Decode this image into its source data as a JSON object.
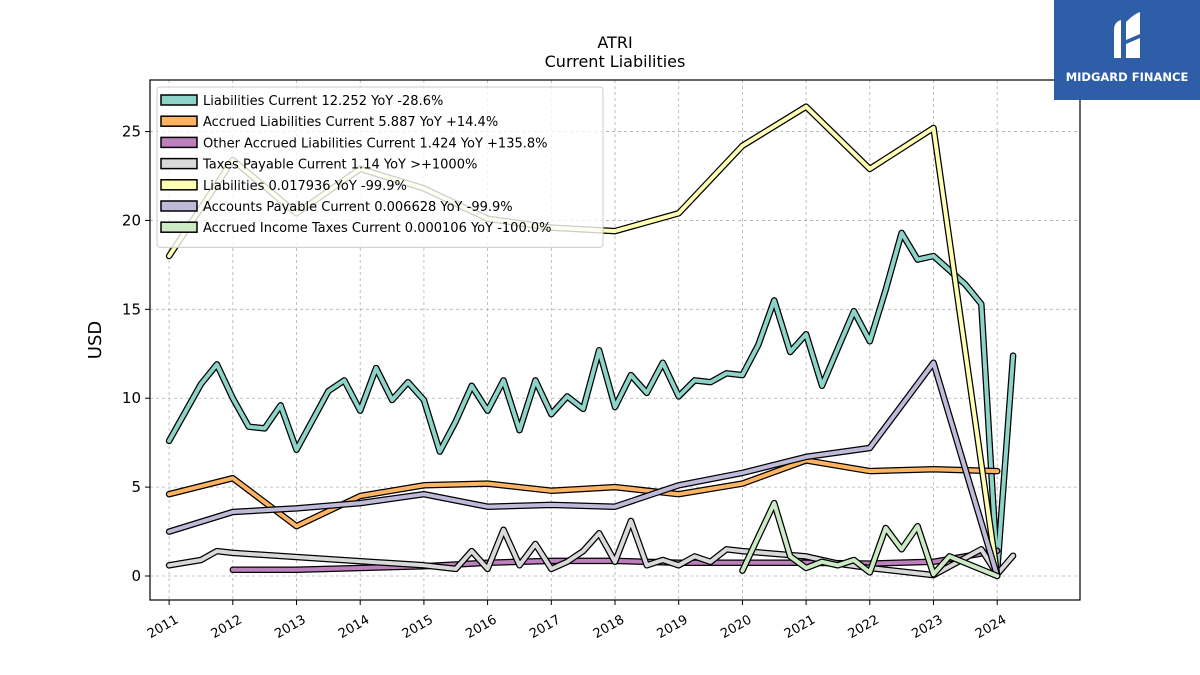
{
  "brand": {
    "name": "MIDGARD FINANCE",
    "color": "#2f5ea8",
    "icon": "midgard-logo-icon"
  },
  "chart_data": {
    "type": "line",
    "title": "ATRI",
    "subtitle": "Current  Liabilities",
    "xlabel": "",
    "ylabel": "USD",
    "xlim": [
      2010.7,
      2025.3
    ],
    "ylim": [
      -1.35,
      27.9
    ],
    "yticks": [
      0,
      5,
      10,
      15,
      20,
      25
    ],
    "xticks": [
      "2011",
      "2012",
      "2013",
      "2014",
      "2015",
      "2016",
      "2017",
      "2018",
      "2019",
      "2020",
      "2021",
      "2022",
      "2023",
      "2024"
    ],
    "grid": true,
    "legend_position": "top-left",
    "series": [
      {
        "name": "Liabilities Current  12.252 YoY -28.6%",
        "color": "#8dd3c7",
        "x": [
          2011.0,
          2011.5,
          2011.75,
          2012.0,
          2012.25,
          2012.5,
          2012.75,
          2013.0,
          2013.5,
          2013.75,
          2014.0,
          2014.25,
          2014.5,
          2014.75,
          2015.0,
          2015.25,
          2015.5,
          2015.75,
          2016.0,
          2016.25,
          2016.5,
          2016.75,
          2017.0,
          2017.25,
          2017.5,
          2017.75,
          2018.0,
          2018.25,
          2018.5,
          2018.75,
          2019.0,
          2019.25,
          2019.5,
          2019.75,
          2020.0,
          2020.25,
          2020.5,
          2020.75,
          2021.0,
          2021.25,
          2021.5,
          2021.75,
          2022.0,
          2022.25,
          2022.5,
          2022.75,
          2023.0,
          2023.5,
          2023.75,
          2024.0,
          2024.25
        ],
        "y": [
          7.6,
          10.8,
          11.9,
          10.0,
          8.4,
          8.3,
          9.6,
          7.1,
          10.4,
          11.0,
          9.3,
          11.7,
          9.9,
          10.9,
          9.9,
          7.0,
          8.7,
          10.7,
          9.3,
          11.0,
          8.2,
          11.0,
          9.1,
          10.1,
          9.4,
          12.7,
          9.5,
          11.3,
          10.3,
          12.0,
          10.1,
          11.0,
          10.9,
          11.4,
          11.3,
          13.0,
          15.5,
          12.6,
          13.6,
          10.7,
          12.8,
          14.9,
          13.2,
          16.1,
          19.3,
          17.8,
          18.0,
          16.4,
          15.3,
          0.3,
          12.4
        ]
      },
      {
        "name": "Accrued Liabilities Current  5.887 YoY +14.4%",
        "color": "#fdb462",
        "x": [
          2011.0,
          2012.0,
          2013.0,
          2014.0,
          2015.0,
          2016.0,
          2017.0,
          2018.0,
          2019.0,
          2020.0,
          2021.0,
          2022.0,
          2023.0,
          2024.0
        ],
        "y": [
          4.6,
          5.5,
          2.8,
          4.5,
          5.1,
          5.2,
          4.8,
          5.0,
          4.6,
          5.2,
          6.5,
          5.9,
          6.0,
          5.9
        ]
      },
      {
        "name": "Other Accrued Liabilities Current  1.424 YoY +135.8%",
        "color": "#bc80bd",
        "x": [
          2012.0,
          2013.0,
          2014.0,
          2015.0,
          2016.0,
          2017.0,
          2018.0,
          2019.0,
          2020.0,
          2021.0,
          2022.0,
          2023.0,
          2024.0
        ],
        "y": [
          0.35,
          0.35,
          0.45,
          0.55,
          0.75,
          0.85,
          0.85,
          0.75,
          0.75,
          0.75,
          0.7,
          0.8,
          1.42
        ]
      },
      {
        "name": "Taxes Payable Current  1.14 YoY >+1000%",
        "color": "#d9d9d9",
        "x": [
          2011.0,
          2011.5,
          2011.75,
          2012.0,
          2015.0,
          2015.5,
          2015.75,
          2016.0,
          2016.25,
          2016.5,
          2016.75,
          2017.0,
          2017.25,
          2017.5,
          2017.75,
          2018.0,
          2018.25,
          2018.5,
          2018.75,
          2019.0,
          2019.25,
          2019.5,
          2019.75,
          2020.0,
          2021.0,
          2021.5,
          2022.0,
          2023.0,
          2023.75,
          2024.0,
          2024.25
        ],
        "y": [
          0.6,
          0.9,
          1.4,
          1.3,
          0.6,
          0.4,
          1.4,
          0.4,
          2.6,
          0.6,
          1.8,
          0.4,
          0.8,
          1.4,
          2.4,
          0.8,
          3.1,
          0.6,
          0.9,
          0.6,
          1.1,
          0.8,
          1.5,
          1.4,
          1.1,
          0.7,
          0.45,
          0.05,
          1.5,
          0.1,
          1.14
        ]
      },
      {
        "name": "Liabilities  0.017936 YoY -99.9%",
        "color": "#ffffb3",
        "x": [
          2011.0,
          2012.0,
          2013.0,
          2014.0,
          2015.0,
          2016.0,
          2017.0,
          2018.0,
          2019.0,
          2020.0,
          2021.0,
          2022.0,
          2023.0,
          2024.0
        ],
        "y": [
          18.0,
          23.4,
          20.4,
          22.9,
          21.8,
          20.1,
          19.6,
          19.4,
          20.4,
          24.2,
          26.4,
          22.9,
          25.2,
          0.02
        ]
      },
      {
        "name": "Accounts Payable Current  0.006628 YoY -99.9%",
        "color": "#bebada",
        "x": [
          2011.0,
          2012.0,
          2013.0,
          2014.0,
          2015.0,
          2016.0,
          2017.0,
          2018.0,
          2019.0,
          2020.0,
          2021.0,
          2022.0,
          2023.0,
          2024.0
        ],
        "y": [
          2.5,
          3.6,
          3.8,
          4.1,
          4.6,
          3.9,
          4.0,
          3.9,
          5.1,
          5.8,
          6.7,
          7.2,
          12.0,
          0.01
        ]
      },
      {
        "name": "Accrued Income Taxes Current  0.000106 YoY -100.0%",
        "color": "#ccebc5",
        "x": [
          2020.0,
          2020.5,
          2020.75,
          2021.0,
          2021.25,
          2021.5,
          2021.75,
          2022.0,
          2022.25,
          2022.5,
          2022.75,
          2023.0,
          2023.25,
          2024.0
        ],
        "y": [
          0.3,
          4.1,
          1.1,
          0.45,
          0.8,
          0.6,
          0.9,
          0.2,
          2.7,
          1.5,
          2.8,
          0.1,
          1.1,
          0.0
        ]
      }
    ]
  }
}
